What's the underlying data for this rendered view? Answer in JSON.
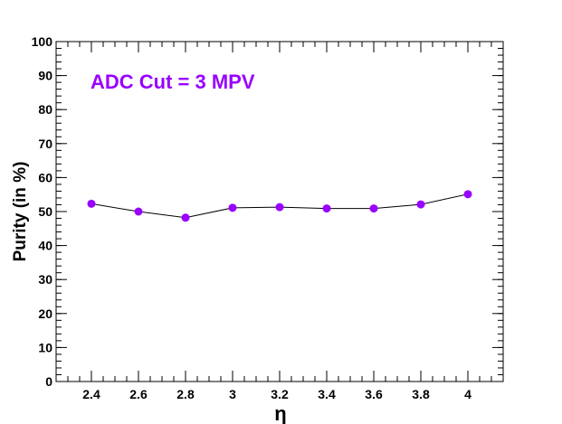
{
  "chart_data": {
    "type": "scatter",
    "xlabel": "η",
    "ylabel": "Purity (in %)",
    "xlim": [
      2.25,
      4.15
    ],
    "ylim": [
      0,
      100
    ],
    "x_ticks": [
      "2.4",
      "2.6",
      "2.8",
      "3",
      "3.2",
      "3.4",
      "3.6",
      "3.8",
      "4"
    ],
    "y_ticks": [
      "0",
      "10",
      "20",
      "30",
      "40",
      "50",
      "60",
      "70",
      "80",
      "90",
      "100"
    ],
    "annotation": "ADC Cut = 3 MPV",
    "grid": false,
    "marker_color": "#9900ff",
    "line_color": "#000000",
    "series": [
      {
        "x": [
          2.4,
          2.6,
          2.8,
          3.0,
          3.2,
          3.4,
          3.6,
          3.8,
          4.0
        ],
        "y": [
          52.3,
          50.0,
          48.2,
          51.1,
          51.3,
          50.9,
          50.9,
          52.1,
          55.1
        ]
      }
    ]
  }
}
